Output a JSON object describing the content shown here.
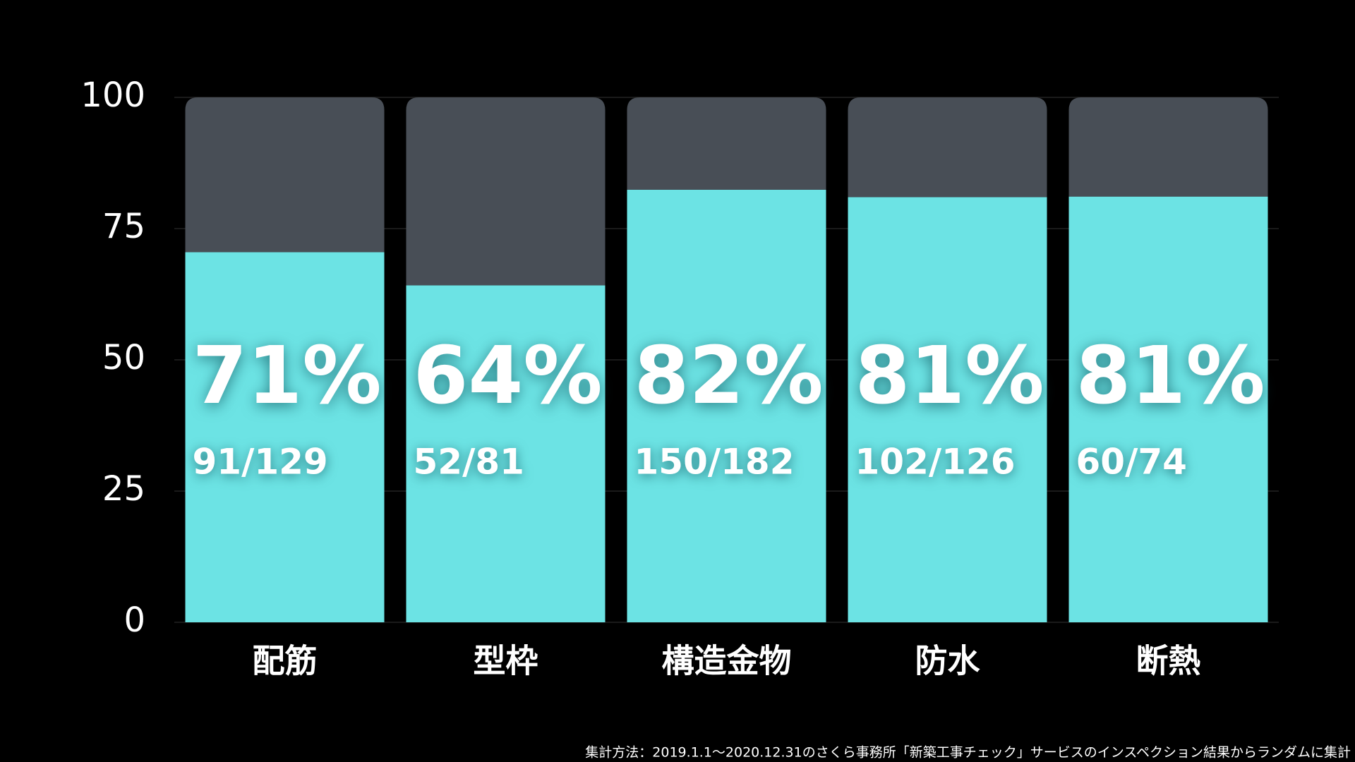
{
  "chart_data": {
    "type": "bar",
    "stacked": true,
    "categories": [
      "配筋",
      "型枠",
      "構造金物",
      "防水",
      "断熱"
    ],
    "series": [
      {
        "color": "#6ce3e4",
        "values": [
          70.5,
          64.2,
          82.4,
          81.0,
          81.1
        ],
        "value_labels": [
          "71%",
          "64%",
          "82%",
          "81%",
          "81%"
        ]
      },
      {
        "color": "#484e56",
        "values": [
          29.5,
          35.8,
          17.6,
          19.0,
          18.9
        ]
      }
    ],
    "count_labels": [
      "91/129",
      "52/81",
      "150/182",
      "102/126",
      "60/74"
    ],
    "ylim": [
      0,
      100
    ],
    "yticks": [
      0,
      25,
      50,
      75,
      100
    ],
    "grid": true,
    "footnote": "集計方法：2019.1.1〜2020.12.31のさくら事務所「新築工事チェック」サービスのインスペクション結果からランダムに集計"
  }
}
